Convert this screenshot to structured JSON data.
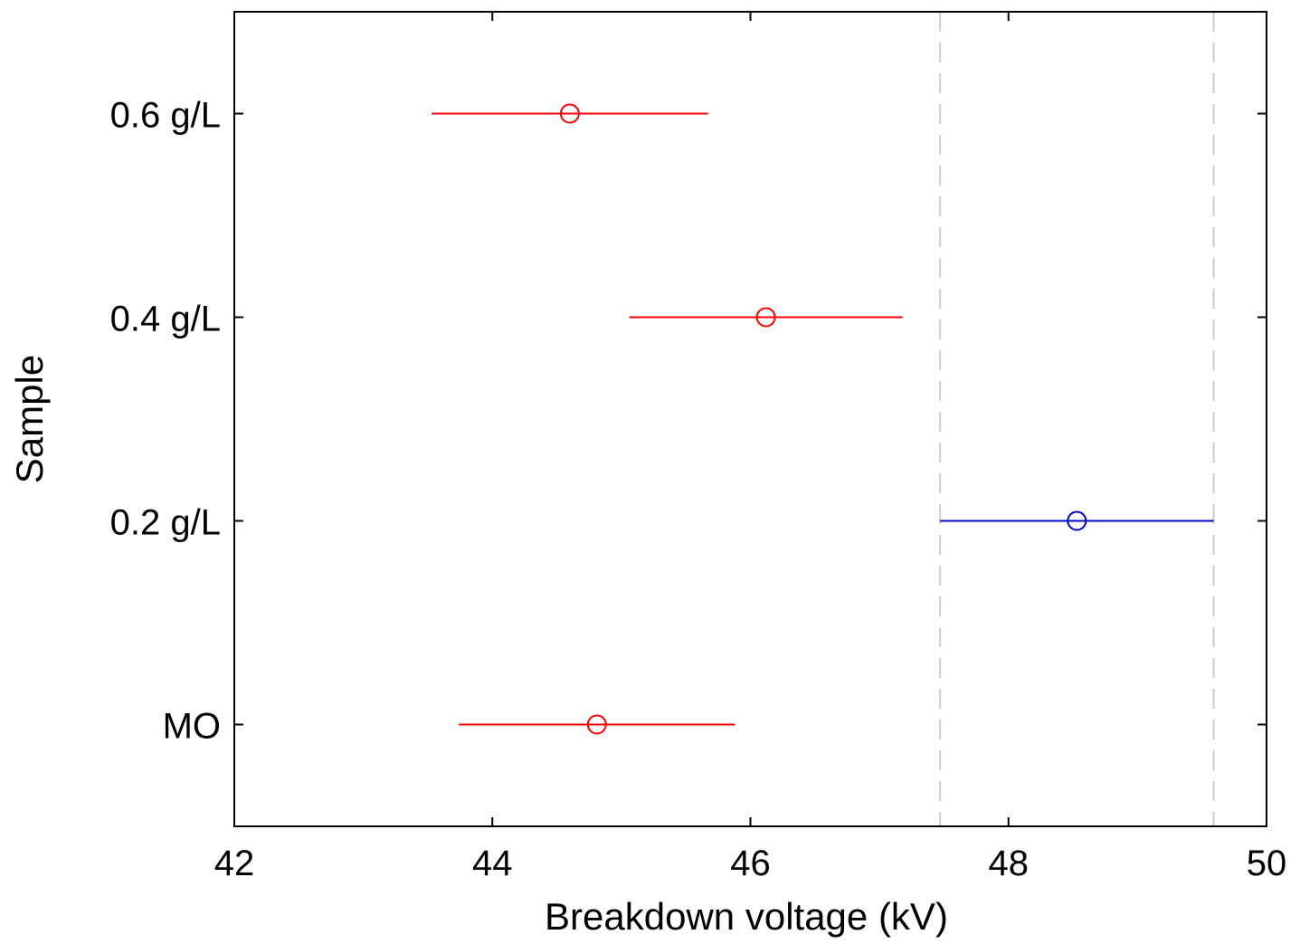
{
  "chart_data": {
    "type": "errorbar",
    "title": "",
    "xlabel": "Breakdown voltage (kV)",
    "ylabel": "Sample",
    "xlim": [
      42,
      50
    ],
    "xticks": [
      42,
      44,
      46,
      48,
      50
    ],
    "xtick_labels": [
      "42",
      "44",
      "46",
      "48",
      "50"
    ],
    "categories": [
      "MO",
      "0.2 g/L",
      "0.4 g/L",
      "0.6 g/L"
    ],
    "points": [
      {
        "category": "0.6 g/L",
        "mean": 44.6,
        "low": 43.53,
        "high": 45.67,
        "color": "#ff0000"
      },
      {
        "category": "0.4 g/L",
        "mean": 46.12,
        "low": 45.06,
        "high": 47.18,
        "color": "#ff0000"
      },
      {
        "category": "0.2 g/L",
        "mean": 48.53,
        "low": 47.47,
        "high": 49.59,
        "color": "#0000cc"
      },
      {
        "category": "MO",
        "mean": 44.81,
        "low": 43.74,
        "high": 45.88,
        "color": "#ff0000"
      }
    ],
    "reference_lines": [
      47.47,
      49.59
    ],
    "reference_line_color": "#cccccc",
    "grid": false,
    "legend": "none"
  }
}
